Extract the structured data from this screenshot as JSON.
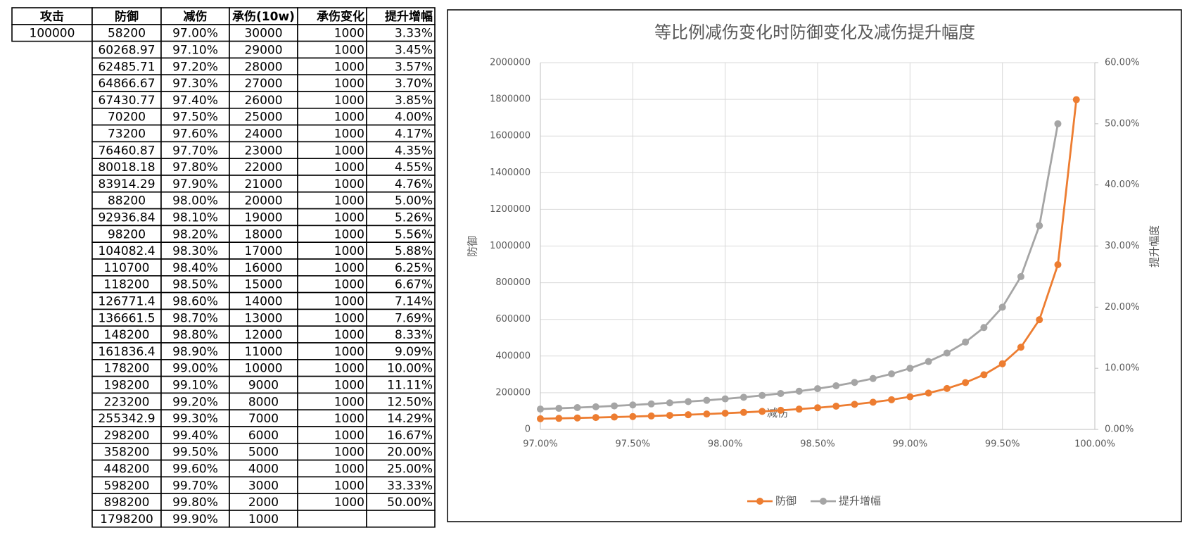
{
  "table": {
    "header": [
      "攻击",
      "防御",
      "减伤",
      "承伤(10w)",
      "承伤变化",
      "提升增幅"
    ],
    "rows": [
      [
        "100000",
        "58200",
        "97.00%",
        "30000",
        "1000",
        "3.33%"
      ],
      [
        null,
        "60268.97",
        "97.10%",
        "29000",
        "1000",
        "3.45%"
      ],
      [
        null,
        "62485.71",
        "97.20%",
        "28000",
        "1000",
        "3.57%"
      ],
      [
        null,
        "64866.67",
        "97.30%",
        "27000",
        "1000",
        "3.70%"
      ],
      [
        null,
        "67430.77",
        "97.40%",
        "26000",
        "1000",
        "3.85%"
      ],
      [
        null,
        "70200",
        "97.50%",
        "25000",
        "1000",
        "4.00%"
      ],
      [
        null,
        "73200",
        "97.60%",
        "24000",
        "1000",
        "4.17%"
      ],
      [
        null,
        "76460.87",
        "97.70%",
        "23000",
        "1000",
        "4.35%"
      ],
      [
        null,
        "80018.18",
        "97.80%",
        "22000",
        "1000",
        "4.55%"
      ],
      [
        null,
        "83914.29",
        "97.90%",
        "21000",
        "1000",
        "4.76%"
      ],
      [
        null,
        "88200",
        "98.00%",
        "20000",
        "1000",
        "5.00%"
      ],
      [
        null,
        "92936.84",
        "98.10%",
        "19000",
        "1000",
        "5.26%"
      ],
      [
        null,
        "98200",
        "98.20%",
        "18000",
        "1000",
        "5.56%"
      ],
      [
        null,
        "104082.4",
        "98.30%",
        "17000",
        "1000",
        "5.88%"
      ],
      [
        null,
        "110700",
        "98.40%",
        "16000",
        "1000",
        "6.25%"
      ],
      [
        null,
        "118200",
        "98.50%",
        "15000",
        "1000",
        "6.67%"
      ],
      [
        null,
        "126771.4",
        "98.60%",
        "14000",
        "1000",
        "7.14%"
      ],
      [
        null,
        "136661.5",
        "98.70%",
        "13000",
        "1000",
        "7.69%"
      ],
      [
        null,
        "148200",
        "98.80%",
        "12000",
        "1000",
        "8.33%"
      ],
      [
        null,
        "161836.4",
        "98.90%",
        "11000",
        "1000",
        "9.09%"
      ],
      [
        null,
        "178200",
        "99.00%",
        "10000",
        "1000",
        "10.00%"
      ],
      [
        null,
        "198200",
        "99.10%",
        "9000",
        "1000",
        "11.11%"
      ],
      [
        null,
        "223200",
        "99.20%",
        "8000",
        "1000",
        "12.50%"
      ],
      [
        null,
        "255342.9",
        "99.30%",
        "7000",
        "1000",
        "14.29%"
      ],
      [
        null,
        "298200",
        "99.40%",
        "6000",
        "1000",
        "16.67%"
      ],
      [
        null,
        "358200",
        "99.50%",
        "5000",
        "1000",
        "20.00%"
      ],
      [
        null,
        "448200",
        "99.60%",
        "4000",
        "1000",
        "25.00%"
      ],
      [
        null,
        "598200",
        "99.70%",
        "3000",
        "1000",
        "33.33%"
      ],
      [
        null,
        "898200",
        "99.80%",
        "2000",
        "1000",
        "50.00%"
      ],
      [
        null,
        "1798200",
        "99.90%",
        "1000",
        null,
        null
      ]
    ]
  },
  "chart_data": {
    "type": "line",
    "title": "等比例减伤变化时防御变化及减伤提升幅度",
    "x_label": "减伤",
    "y_label": "防御",
    "y2_label": "提升幅度",
    "x": [
      97.0,
      97.1,
      97.2,
      97.3,
      97.4,
      97.5,
      97.6,
      97.7,
      97.8,
      97.9,
      98.0,
      98.1,
      98.2,
      98.3,
      98.4,
      98.5,
      98.6,
      98.7,
      98.8,
      98.9,
      99.0,
      99.1,
      99.2,
      99.3,
      99.4,
      99.5,
      99.6,
      99.7,
      99.8,
      99.9
    ],
    "series": [
      {
        "name": "防御",
        "color": "#ed7d31",
        "values": [
          58200,
          60268.97,
          62485.71,
          64866.67,
          67430.77,
          70200,
          73200,
          76460.87,
          80018.18,
          83914.29,
          88200,
          92936.84,
          98200,
          104082.4,
          110700,
          118200,
          126771.4,
          136661.5,
          148200,
          161836.4,
          178200,
          198200,
          223200,
          255342.9,
          298200,
          358200,
          448200,
          598200,
          898200,
          1798200
        ]
      },
      {
        "name": "提升增幅",
        "color": "#a5a5a5",
        "axis": "y2",
        "values": [
          3.33,
          3.45,
          3.57,
          3.7,
          3.85,
          4.0,
          4.17,
          4.35,
          4.55,
          4.76,
          5.0,
          5.26,
          5.56,
          5.88,
          6.25,
          6.67,
          7.14,
          7.69,
          8.33,
          9.09,
          10.0,
          11.11,
          12.5,
          14.29,
          16.67,
          20.0,
          25.0,
          33.33,
          50.0,
          null
        ]
      }
    ],
    "xlim": [
      97,
      100
    ],
    "xticks": [
      {
        "value": 97,
        "label": "97.00%"
      },
      {
        "value": 97.5,
        "label": "97.50%"
      },
      {
        "value": 98,
        "label": "98.00%"
      },
      {
        "value": 98.5,
        "label": "98.50%"
      },
      {
        "value": 99,
        "label": "99.00%"
      },
      {
        "value": 99.5,
        "label": "99.50%"
      },
      {
        "value": 100,
        "label": "100.00%"
      }
    ],
    "ylim": [
      0,
      2000000
    ],
    "yticks": [
      0,
      200000,
      400000,
      600000,
      800000,
      1000000,
      1200000,
      1400000,
      1600000,
      1800000,
      2000000
    ],
    "y2lim": [
      0,
      60
    ],
    "y2ticks": [
      {
        "value": 0,
        "label": "0.00%"
      },
      {
        "value": 10,
        "label": "10.00%"
      },
      {
        "value": 20,
        "label": "20.00%"
      },
      {
        "value": 30,
        "label": "30.00%"
      },
      {
        "value": 40,
        "label": "40.00%"
      },
      {
        "value": 50,
        "label": "50.00%"
      },
      {
        "value": 60,
        "label": "60.00%"
      }
    ],
    "grid": true,
    "legend": "bottom"
  }
}
